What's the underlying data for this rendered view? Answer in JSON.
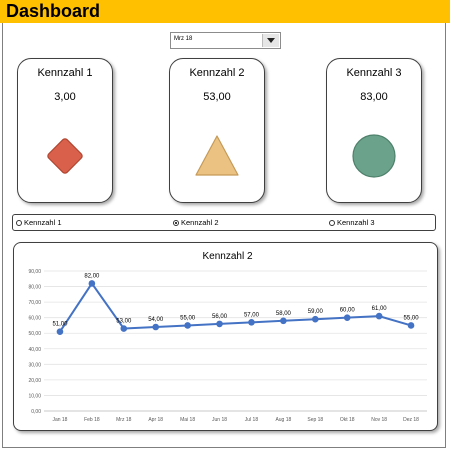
{
  "header": {
    "title": "Dashboard"
  },
  "dropdown": {
    "selected": "Mrz 18",
    "icon": "chevron-down-icon"
  },
  "cards": [
    {
      "title": "Kennzahl  1",
      "value": "3,00",
      "shape": "diamond",
      "color": "#d9604a"
    },
    {
      "title": "Kennzahl  2",
      "value": "53,00",
      "shape": "triangle",
      "color": "#ebc282"
    },
    {
      "title": "Kennzahl  3",
      "value": "83,00",
      "shape": "circle",
      "color": "#6aa28b"
    }
  ],
  "radios": [
    {
      "label": "Kennzahl 1",
      "selected": false
    },
    {
      "label": "Kennzahl 2",
      "selected": true
    },
    {
      "label": "Kennzahl 3",
      "selected": false
    }
  ],
  "chart_data": {
    "type": "line",
    "title": "Kennzahl  2",
    "categories": [
      "Jan 18",
      "Feb 18",
      "Mrz 18",
      "Apr 18",
      "Mai 18",
      "Jun 18",
      "Jul 18",
      "Aug 18",
      "Sep 18",
      "Okt 18",
      "Nov 18",
      "Dez 18"
    ],
    "values": [
      51,
      82,
      53,
      54,
      55,
      56,
      57,
      58,
      59,
      60,
      61,
      55
    ],
    "data_labels": [
      "51,00",
      "82,00",
      "53,00",
      "54,00",
      "55,00",
      "56,00",
      "57,00",
      "58,00",
      "59,00",
      "60,00",
      "61,00",
      "55,00"
    ],
    "y_ticks": [
      "0,00",
      "10,00",
      "20,00",
      "30,00",
      "40,00",
      "50,00",
      "60,00",
      "70,00",
      "80,00",
      "90,00"
    ],
    "ylim": [
      0,
      90
    ],
    "grid": true,
    "legend": "none",
    "color": "#4472c4"
  }
}
